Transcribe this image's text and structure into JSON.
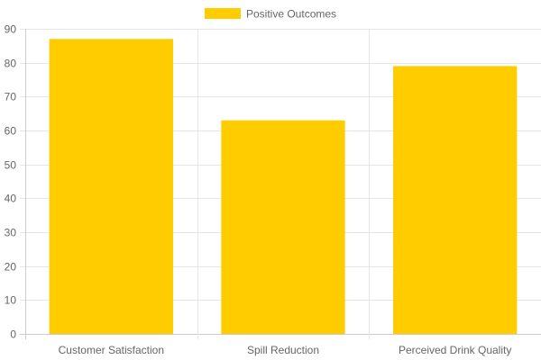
{
  "chart_data": {
    "type": "bar",
    "categories": [
      "Customer Satisfaction",
      "Spill Reduction",
      "Perceived Drink Quality"
    ],
    "series": [
      {
        "name": "Positive Outcomes",
        "values": [
          87,
          63,
          79
        ],
        "color": "#ffcc00"
      }
    ],
    "ylim": [
      0,
      90
    ],
    "yticks": [
      "0",
      "10",
      "20",
      "30",
      "40",
      "50",
      "60",
      "70",
      "80",
      "90"
    ],
    "grid": true,
    "legend_position": "top-center",
    "gridline_color": "#e6e6e6",
    "axis_color": "#cccccc",
    "text_color": "#666666"
  }
}
